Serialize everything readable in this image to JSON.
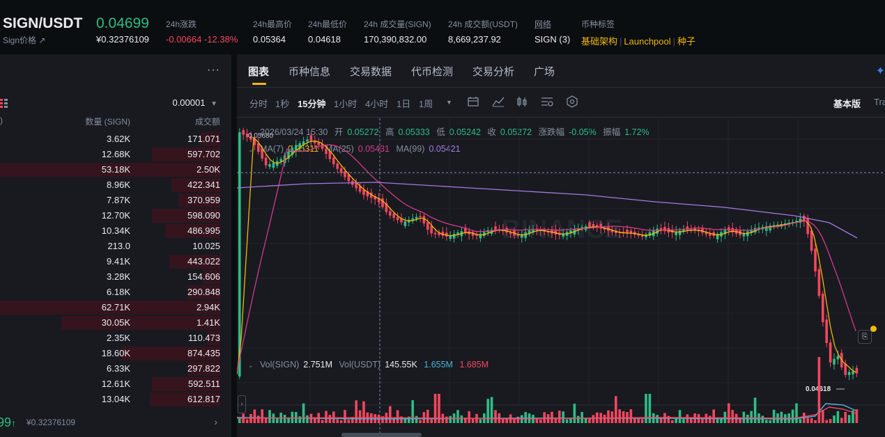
{
  "header": {
    "pair": "SIGN/USDT",
    "sub_label": "Sign价格 ↗",
    "last_price": "0.04699",
    "last_price_cny": "¥0.32376109",
    "stats": [
      {
        "label": "24h涨跌",
        "value": "-0.00664 -12.38%"
      },
      {
        "label": "24h最高价",
        "value": "0.05364"
      },
      {
        "label": "24h最低价",
        "value": "0.04618"
      },
      {
        "label": "24h 成交量(SIGN)",
        "value": "170,390,832.00"
      },
      {
        "label": "24h 成交额(USDT)",
        "value": "8,669,237.92"
      },
      {
        "label": "网络",
        "value": "SIGN (3)"
      },
      {
        "label": "币种标签",
        "value": ""
      }
    ],
    "tags": [
      "基础架构",
      "Launchpool",
      "种子"
    ]
  },
  "orderbook": {
    "more_icon": "more-dots-icon",
    "precision": "0.00001",
    "col_amount": "数量 (SIGN)",
    "col_total": "成交额",
    "col_price_partial": ")",
    "rows": [
      {
        "amount": "3.62K",
        "total": "171.071",
        "depth": 0.09
      },
      {
        "amount": "12.68K",
        "total": "597.702",
        "depth": 0.31
      },
      {
        "amount": "53.18K",
        "total": "2.50K",
        "depth": 1.0
      },
      {
        "amount": "8.96K",
        "total": "422.341",
        "depth": 0.22
      },
      {
        "amount": "7.87K",
        "total": "370.959",
        "depth": 0.19
      },
      {
        "amount": "12.70K",
        "total": "598.090",
        "depth": 0.31
      },
      {
        "amount": "10.34K",
        "total": "486.995",
        "depth": 0.25
      },
      {
        "amount": "213.0",
        "total": "10.025",
        "depth": 0.0
      },
      {
        "amount": "9.41K",
        "total": "443.022",
        "depth": 0.23
      },
      {
        "amount": "3.28K",
        "total": "154.606",
        "depth": 0.08
      },
      {
        "amount": "6.18K",
        "total": "290.848",
        "depth": 0.15
      },
      {
        "amount": "62.71K",
        "total": "2.94K",
        "depth": 1.0
      },
      {
        "amount": "30.05K",
        "total": "1.41K",
        "depth": 0.72
      },
      {
        "amount": "2.35K",
        "total": "110.473",
        "depth": 0.06
      },
      {
        "amount": "18.60K",
        "total": "874.435",
        "depth": 0.45
      },
      {
        "amount": "6.33K",
        "total": "297.822",
        "depth": 0.15
      },
      {
        "amount": "12.61K",
        "total": "592.511",
        "depth": 0.31
      },
      {
        "amount": "13.04K",
        "total": "612.817",
        "depth": 0.32
      }
    ],
    "footer_price": "99",
    "footer_arrow": "↑",
    "footer_cny": "¥0.32376109"
  },
  "chart": {
    "tabs": [
      "图表",
      "币种信息",
      "交易数据",
      "代币检测",
      "交易分析",
      "广场"
    ],
    "active_tab": 0,
    "intervals": [
      "分时",
      "1秒",
      "15分钟",
      "1小时",
      "4小时",
      "1日",
      "1周"
    ],
    "active_interval": 2,
    "version_label": "基本版",
    "version_label2": "Tra",
    "ohlc": {
      "datetime": "2026/03/24 15:30",
      "open_label": "开",
      "open": "0.05272",
      "high_label": "高",
      "high": "0.05333",
      "low_label": "低",
      "low": "0.05242",
      "close_label": "收",
      "close": "0.05272",
      "chg_label": "涨跌幅",
      "chg": "-0.05%",
      "amp_label": "振幅",
      "amp": "1.72%"
    },
    "ma": [
      {
        "label": "MA(7)",
        "value": "0.05311",
        "color": "#f0b90b"
      },
      {
        "label": "MA(25)",
        "value": "0.05431",
        "color": "#d63a8b"
      },
      {
        "label": "MA(99)",
        "value": "0.05421",
        "color": "#a77ae0"
      }
    ],
    "high_marker": "0.05680",
    "low_marker": "0.04618",
    "watermark": "BINANCE",
    "vol": {
      "label1": "Vol(SIGN)",
      "value1": "2.751M",
      "label2": "Vol(USDT)",
      "value2": "145.55K",
      "ma1": "1.655M",
      "ma2": "1.685M"
    },
    "colors": {
      "up": "#2ebd85",
      "down": "#f6465d",
      "vol_ma1": "#4fb1d9",
      "vol_ma2": "#f6465d"
    }
  }
}
